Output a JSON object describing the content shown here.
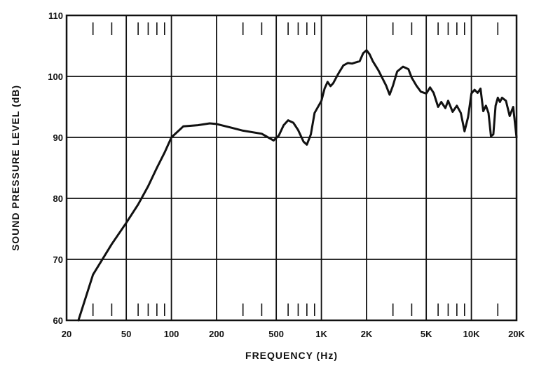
{
  "chart_data": {
    "type": "line",
    "title": "",
    "xlabel": "FREQUENCY (Hz)",
    "ylabel": "SOUND PRESSURE LEVEL (dB)",
    "x_scale": "log",
    "xlim": [
      20,
      20000
    ],
    "ylim": [
      60,
      110
    ],
    "grid": true,
    "x_ticks": [
      {
        "value": 20,
        "label": "20"
      },
      {
        "value": 50,
        "label": "50"
      },
      {
        "value": 100,
        "label": "100"
      },
      {
        "value": 200,
        "label": "200"
      },
      {
        "value": 500,
        "label": "500"
      },
      {
        "value": 1000,
        "label": "1K"
      },
      {
        "value": 2000,
        "label": "2K"
      },
      {
        "value": 5000,
        "label": "5K"
      },
      {
        "value": 10000,
        "label": "10K"
      },
      {
        "value": 20000,
        "label": "20K"
      }
    ],
    "y_ticks": [
      {
        "value": 60,
        "label": "60"
      },
      {
        "value": 70,
        "label": "70"
      },
      {
        "value": 80,
        "label": "80"
      },
      {
        "value": 90,
        "label": "90"
      },
      {
        "value": 100,
        "label": "100"
      },
      {
        "value": 110,
        "label": "110"
      }
    ],
    "minor_x_ticks": [
      30,
      40,
      60,
      70,
      80,
      90,
      300,
      400,
      600,
      700,
      800,
      900,
      3000,
      4000,
      6000,
      7000,
      8000,
      9000,
      15000
    ],
    "series": [
      {
        "color": "#111111",
        "x": [
          24,
          30,
          40,
          50,
          60,
          70,
          80,
          90,
          100,
          120,
          150,
          180,
          200,
          250,
          300,
          400,
          480,
          520,
          560,
          600,
          650,
          700,
          760,
          800,
          850,
          900,
          1000,
          1050,
          1100,
          1150,
          1200,
          1300,
          1400,
          1500,
          1600,
          1800,
          1900,
          2000,
          2100,
          2200,
          2400,
          2700,
          2850,
          3000,
          3200,
          3500,
          3800,
          4000,
          4300,
          4600,
          5000,
          5300,
          5600,
          6000,
          6300,
          6700,
          7000,
          7500,
          8000,
          8500,
          9000,
          9500,
          10000,
          10500,
          11000,
          11500,
          12000,
          12500,
          13000,
          13500,
          14000,
          14500,
          15000,
          15500,
          16000,
          17000,
          18000,
          19000,
          20000
        ],
        "y": [
          60,
          67.5,
          72.5,
          76,
          79,
          82,
          85,
          87.5,
          90,
          91.8,
          92,
          92.3,
          92.2,
          91.6,
          91.1,
          90.6,
          89.5,
          90.3,
          92,
          92.8,
          92.4,
          91.2,
          89.3,
          88.8,
          90.5,
          94,
          96,
          98,
          99.1,
          98.4,
          98.9,
          100.5,
          101.8,
          102.2,
          102.1,
          102.5,
          103.8,
          104.3,
          103.6,
          102.5,
          101,
          98.5,
          97,
          98.5,
          100.8,
          101.6,
          101.2,
          99.8,
          98.5,
          97.5,
          97.2,
          98.2,
          97.3,
          95,
          95.8,
          94.8,
          96,
          94.2,
          95.2,
          94,
          91,
          93.3,
          97.2,
          97.8,
          97.3,
          98,
          94.3,
          95.2,
          94,
          90.2,
          90.5,
          95.2,
          96.5,
          95.8,
          96.5,
          96,
          93.5,
          95,
          90
        ]
      }
    ]
  }
}
